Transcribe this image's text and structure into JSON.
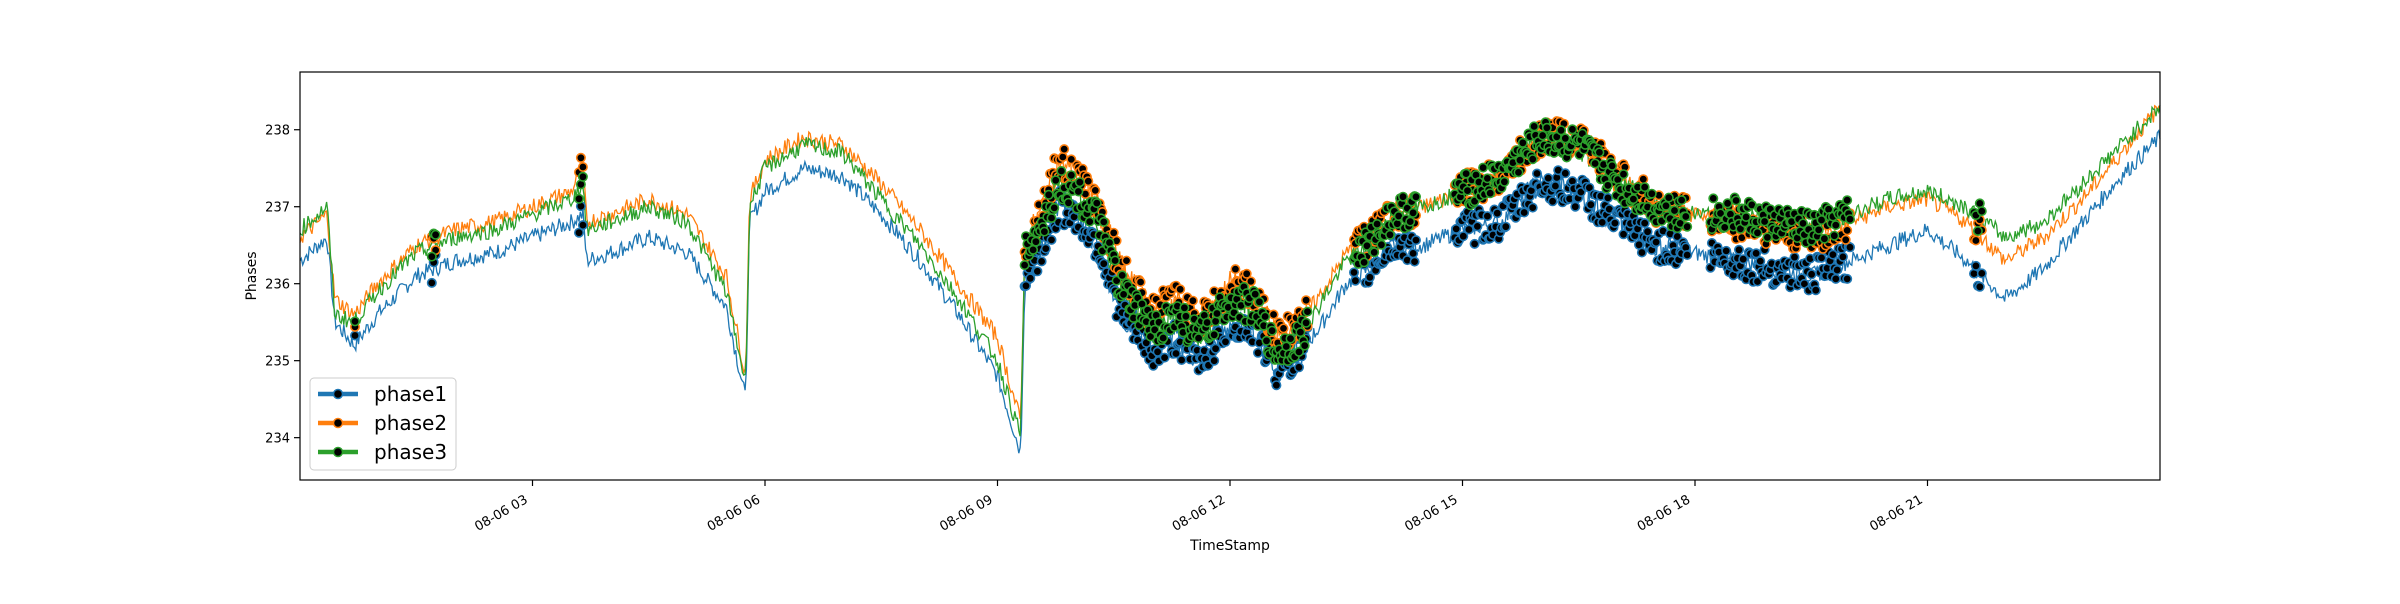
{
  "chart_data": {
    "type": "line",
    "xlabel": "TimeStamp",
    "ylabel": "Phases",
    "x_ticks": [
      "08-06 03",
      "08-06 06",
      "08-06 09",
      "08-06 12",
      "08-06 15",
      "08-06 18",
      "08-06 21"
    ],
    "y_ticks": [
      "234",
      "235",
      "236",
      "237",
      "238"
    ],
    "x_range_hours": [
      0,
      24
    ],
    "ylim": [
      233.45,
      238.75
    ],
    "grid": false,
    "legend": {
      "position": "lower-left"
    },
    "x_unit": "hours since 08-06 00",
    "series": [
      {
        "name": "phase1",
        "color": "#1f77b4",
        "x": [
          0,
          0.35,
          0.45,
          0.7,
          1.0,
          1.5,
          2.0,
          2.5,
          3.0,
          3.5,
          3.65,
          3.7,
          4.0,
          4.5,
          5.0,
          5.5,
          5.75,
          5.8,
          6.0,
          6.5,
          7.0,
          7.5,
          8.0,
          8.5,
          9.0,
          9.3,
          9.35,
          9.5,
          9.8,
          10.0,
          10.3,
          10.6,
          11.0,
          11.3,
          11.6,
          11.8,
          12.0,
          12.3,
          12.6,
          12.9,
          13.2,
          13.5,
          13.8,
          14.1,
          14.5,
          15.0,
          15.5,
          16.0,
          16.5,
          17.0,
          17.5,
          18.0,
          18.5,
          19.0,
          19.5,
          20.0,
          20.5,
          21.0,
          21.5,
          22.0,
          22.5,
          23.0,
          23.5,
          24.0
        ],
        "values": [
          236.3,
          236.6,
          235.5,
          235.2,
          235.6,
          236.1,
          236.3,
          236.4,
          236.6,
          236.8,
          236.9,
          236.3,
          236.4,
          236.6,
          236.4,
          235.7,
          234.5,
          236.8,
          237.2,
          237.5,
          237.4,
          236.9,
          236.3,
          235.6,
          234.8,
          233.8,
          236.0,
          236.3,
          237.0,
          236.9,
          236.5,
          235.6,
          235.1,
          235.3,
          235.0,
          235.2,
          235.5,
          235.4,
          234.9,
          235.1,
          235.5,
          236.0,
          236.2,
          236.5,
          236.5,
          236.7,
          236.8,
          237.3,
          237.2,
          236.8,
          236.5,
          236.4,
          236.3,
          236.2,
          236.1,
          236.3,
          236.5,
          236.7,
          236.3,
          235.8,
          236.2,
          236.8,
          237.4,
          237.9
        ]
      },
      {
        "name": "phase2",
        "color": "#ff7f0e",
        "x": [
          0,
          0.35,
          0.45,
          0.7,
          1.0,
          1.5,
          2.0,
          2.5,
          3.0,
          3.5,
          3.65,
          3.7,
          4.0,
          4.5,
          5.0,
          5.5,
          5.75,
          5.8,
          6.0,
          6.5,
          7.0,
          7.5,
          8.0,
          8.5,
          9.0,
          9.3,
          9.35,
          9.5,
          9.8,
          10.0,
          10.3,
          10.6,
          11.0,
          11.3,
          11.6,
          11.8,
          12.0,
          12.3,
          12.6,
          12.9,
          13.2,
          13.5,
          13.8,
          14.1,
          14.5,
          15.0,
          15.5,
          16.0,
          16.5,
          17.0,
          17.5,
          18.0,
          18.5,
          19.0,
          19.5,
          20.0,
          20.5,
          21.0,
          21.5,
          22.0,
          22.5,
          23.0,
          23.5,
          24.0
        ],
        "values": [
          236.6,
          236.9,
          235.8,
          235.6,
          236.0,
          236.5,
          236.7,
          236.8,
          237.0,
          237.2,
          237.5,
          236.8,
          236.9,
          237.1,
          236.9,
          236.1,
          234.8,
          237.1,
          237.6,
          237.9,
          237.8,
          237.3,
          236.7,
          236.0,
          235.3,
          234.2,
          236.5,
          236.8,
          237.6,
          237.4,
          237.0,
          236.2,
          235.6,
          235.8,
          235.5,
          235.7,
          236.0,
          235.9,
          235.3,
          235.5,
          235.9,
          236.4,
          236.6,
          236.9,
          237.0,
          237.2,
          237.4,
          237.9,
          237.9,
          237.4,
          237.0,
          236.9,
          236.8,
          236.7,
          236.6,
          236.8,
          237.0,
          237.1,
          236.8,
          236.3,
          236.6,
          237.1,
          237.7,
          238.3
        ]
      },
      {
        "name": "phase3",
        "color": "#2ca02c",
        "x": [
          0,
          0.35,
          0.45,
          0.7,
          1.0,
          1.5,
          2.0,
          2.5,
          3.0,
          3.5,
          3.65,
          3.7,
          4.0,
          4.5,
          5.0,
          5.5,
          5.75,
          5.8,
          6.0,
          6.5,
          7.0,
          7.5,
          8.0,
          8.5,
          9.0,
          9.3,
          9.35,
          9.5,
          9.8,
          10.0,
          10.3,
          10.6,
          11.0,
          11.3,
          11.6,
          11.8,
          12.0,
          12.3,
          12.6,
          12.9,
          13.2,
          13.5,
          13.8,
          14.1,
          14.5,
          15.0,
          15.5,
          16.0,
          16.5,
          17.0,
          17.5,
          18.0,
          18.5,
          19.0,
          19.5,
          20.0,
          20.5,
          21.0,
          21.5,
          22.0,
          22.5,
          23.0,
          23.5,
          24.0
        ],
        "values": [
          236.7,
          237.0,
          235.6,
          235.5,
          235.9,
          236.4,
          236.6,
          236.7,
          236.9,
          237.1,
          237.3,
          236.7,
          236.8,
          237.0,
          236.8,
          235.9,
          234.7,
          237.0,
          237.5,
          237.8,
          237.7,
          237.1,
          236.5,
          235.8,
          235.0,
          234.0,
          236.4,
          236.6,
          237.3,
          237.2,
          236.8,
          235.9,
          235.4,
          235.6,
          235.3,
          235.5,
          235.8,
          235.7,
          235.1,
          235.3,
          235.8,
          236.3,
          236.5,
          236.9,
          237.0,
          237.2,
          237.4,
          237.9,
          237.8,
          237.3,
          237.0,
          236.9,
          236.9,
          236.8,
          236.7,
          236.9,
          237.1,
          237.2,
          237.0,
          236.6,
          236.8,
          237.3,
          237.8,
          238.3
        ]
      }
    ]
  }
}
